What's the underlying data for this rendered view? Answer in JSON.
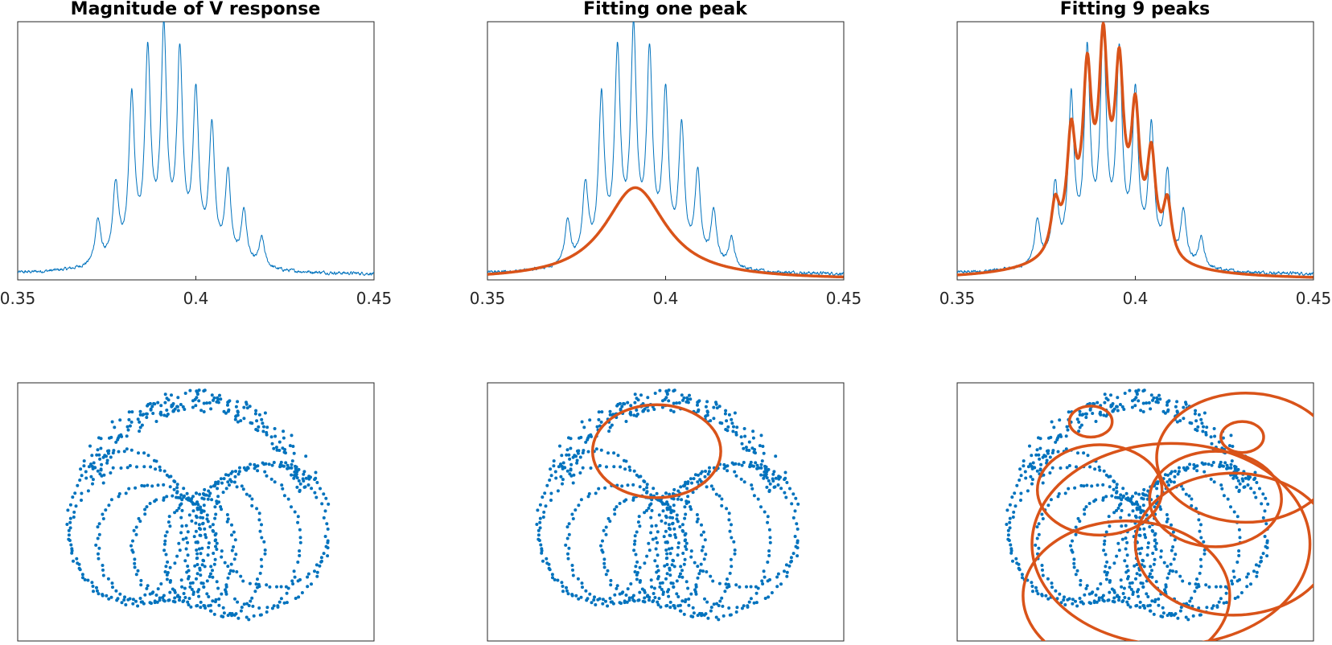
{
  "colors": {
    "data": "#0072BD",
    "fit": "#D95319",
    "axes": "#262626"
  },
  "chart_data": [
    {
      "type": "line",
      "title": "Magnitude of V response",
      "xlabel": "",
      "ylabel": "",
      "xlim": [
        0.35,
        0.45
      ],
      "xticks": [
        "0.35",
        "0.4",
        "0.45"
      ],
      "ylim": [
        0,
        1.05
      ],
      "peaks_x": [
        0.3725,
        0.3775,
        0.382,
        0.3865,
        0.391,
        0.3955,
        0.4,
        0.4045,
        0.409,
        0.4135,
        0.4185
      ],
      "peaks_y": [
        0.18,
        0.3,
        0.63,
        0.78,
        0.86,
        0.77,
        0.64,
        0.53,
        0.36,
        0.22,
        0.12
      ],
      "series": [
        {
          "color": "#0072BD",
          "kind": "response"
        }
      ]
    },
    {
      "type": "line",
      "title": "Fitting one peak",
      "xlabel": "",
      "ylabel": "",
      "xlim": [
        0.35,
        0.45
      ],
      "xticks": [
        "0.35",
        "0.4",
        "0.45"
      ],
      "ylim": [
        0,
        1.05
      ],
      "series": [
        {
          "color": "#0072BD",
          "kind": "response"
        },
        {
          "color": "#D95319",
          "kind": "fit",
          "peaks": [
            {
              "center": 0.3915,
              "amplitude": 0.375,
              "halfwidth": 0.0105
            }
          ],
          "baseline": 0.0
        }
      ]
    },
    {
      "type": "line",
      "title": "Fitting 9 peaks",
      "xlabel": "",
      "ylabel": "",
      "xlim": [
        0.35,
        0.45
      ],
      "xticks": [
        "0.35",
        "0.4",
        "0.45"
      ],
      "ylim": [
        0,
        1.05
      ],
      "series": [
        {
          "color": "#0072BD",
          "kind": "response"
        },
        {
          "color": "#D95319",
          "kind": "fit",
          "peaks": [
            {
              "center": 0.3775,
              "amplitude": 0.19,
              "halfwidth": 0.0014
            },
            {
              "center": 0.382,
              "amplitude": 0.42,
              "halfwidth": 0.0014
            },
            {
              "center": 0.3865,
              "amplitude": 0.6,
              "halfwidth": 0.0014
            },
            {
              "center": 0.391,
              "amplitude": 0.67,
              "halfwidth": 0.0014
            },
            {
              "center": 0.3955,
              "amplitude": 0.6,
              "halfwidth": 0.0014
            },
            {
              "center": 0.4,
              "amplitude": 0.49,
              "halfwidth": 0.0014
            },
            {
              "center": 0.4045,
              "amplitude": 0.37,
              "halfwidth": 0.0014
            },
            {
              "center": 0.409,
              "amplitude": 0.22,
              "halfwidth": 0.0014
            },
            {
              "center": 0.3915,
              "amplitude": 0.24,
              "halfwidth": 0.011
            }
          ]
        }
      ]
    },
    {
      "type": "scatter",
      "title": "",
      "xlabel": "",
      "ylabel": "",
      "xlim": [
        -1.0,
        1.0
      ],
      "ylim": [
        -1.0,
        1.0
      ],
      "series": [
        {
          "color": "#0072BD",
          "kind": "nyquist"
        }
      ]
    },
    {
      "type": "scatter",
      "title": "",
      "xlabel": "",
      "ylabel": "",
      "xlim": [
        -1.0,
        1.0
      ],
      "ylim": [
        -1.0,
        1.0
      ],
      "series": [
        {
          "color": "#0072BD",
          "kind": "nyquist"
        },
        {
          "color": "#D95319",
          "kind": "circles",
          "circles": [
            {
              "cx": -0.05,
              "cy": 0.47,
              "r": 0.36
            }
          ]
        }
      ]
    },
    {
      "type": "scatter",
      "title": "",
      "xlabel": "",
      "ylabel": "",
      "xlim": [
        -1.0,
        1.0
      ],
      "ylim": [
        -1.0,
        1.0
      ],
      "series": [
        {
          "color": "#0072BD",
          "kind": "nyquist"
        },
        {
          "color": "#D95319",
          "kind": "circles",
          "circles": [
            {
              "cx": -0.25,
              "cy": 0.7,
              "r": 0.12
            },
            {
              "cx": 0.6,
              "cy": 0.58,
              "r": 0.12
            },
            {
              "cx": -0.2,
              "cy": 0.17,
              "r": 0.35
            },
            {
              "cx": 0.45,
              "cy": 0.1,
              "r": 0.37
            },
            {
              "cx": -0.05,
              "cy": -0.65,
              "r": 0.58
            },
            {
              "cx": 0.55,
              "cy": -0.25,
              "r": 0.55
            },
            {
              "cx": 0.2,
              "cy": -0.25,
              "r": 0.78
            },
            {
              "cx": 0.62,
              "cy": 0.42,
              "r": 0.5
            }
          ]
        }
      ]
    }
  ]
}
